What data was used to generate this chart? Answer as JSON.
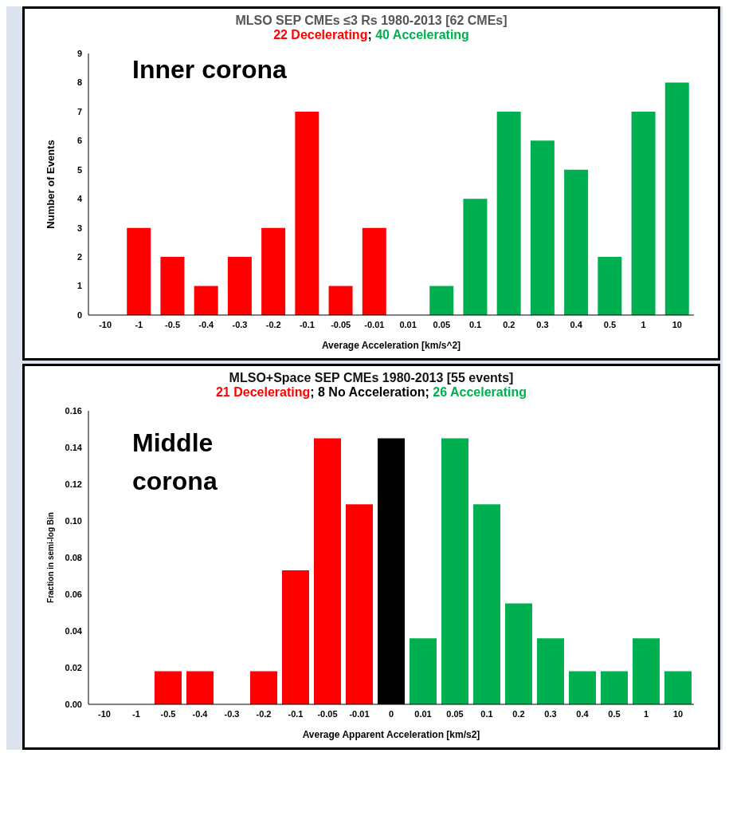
{
  "chart_data": [
    {
      "type": "bar",
      "title": "MLSO SEP CMEs ≤3 Rs 1980-2013 [62 CMEs]",
      "subtitle": "22 Decelerating; 40 Accelerating",
      "xlabel": "Average Acceleration [km/s^2]",
      "ylabel": "Number of Events",
      "annotations": [
        "Inner corona"
      ],
      "categories": [
        "-10",
        "-1",
        "-0.5",
        "-0.4",
        "-0.3",
        "-0.2",
        "-0.1",
        "-0.05",
        "-0.01",
        "0.01",
        "0.05",
        "0.1",
        "0.2",
        "0.3",
        "0.4",
        "0.5",
        "1",
        "10"
      ],
      "values": [
        0,
        3,
        2,
        1,
        2,
        3,
        7,
        1,
        3,
        0,
        1,
        4,
        7,
        6,
        5,
        2,
        7,
        8
      ],
      "colors": [
        "#ff0000",
        "#ff0000",
        "#ff0000",
        "#ff0000",
        "#ff0000",
        "#ff0000",
        "#ff0000",
        "#ff0000",
        "#ff0000",
        "#00b050",
        "#00b050",
        "#00b050",
        "#00b050",
        "#00b050",
        "#00b050",
        "#00b050",
        "#00b050",
        "#00b050"
      ],
      "ylim": [
        0,
        9
      ],
      "yticks": [
        0,
        1,
        2,
        3,
        4,
        5,
        6,
        7,
        8,
        9
      ],
      "grid": false,
      "legend": false
    },
    {
      "type": "bar",
      "title": "MLSO+Space SEP CMEs 1980-2013 [55 events]",
      "subtitle": "21 Decelerating; 8 No Acceleration; 26 Accelerating",
      "xlabel": "Average Apparent Acceleration [km/s2]",
      "ylabel": "Fraction in semi-log Bin",
      "annotations": [
        "Middle corona"
      ],
      "categories": [
        "-10",
        "-1",
        "-0.5",
        "-0.4",
        "-0.3",
        "-0.2",
        "-0.1",
        "-0.05",
        "-0.01",
        "0",
        "0.01",
        "0.05",
        "0.1",
        "0.2",
        "0.3",
        "0.4",
        "0.5",
        "1",
        "10"
      ],
      "values": [
        0,
        0,
        0.018,
        0.018,
        0,
        0.018,
        0.073,
        0.145,
        0.109,
        0.145,
        0.036,
        0.145,
        0.109,
        0.055,
        0.036,
        0.018,
        0.018,
        0.036,
        0.018
      ],
      "colors": [
        "#ff0000",
        "#ff0000",
        "#ff0000",
        "#ff0000",
        "#ff0000",
        "#ff0000",
        "#ff0000",
        "#ff0000",
        "#ff0000",
        "#000000",
        "#00b050",
        "#00b050",
        "#00b050",
        "#00b050",
        "#00b050",
        "#00b050",
        "#00b050",
        "#00b050",
        "#00b050"
      ],
      "ylim": [
        0,
        0.16
      ],
      "yticks": [
        {
          "value": 0,
          "label": "0.00"
        },
        {
          "value": 0.02,
          "label": "0.02"
        },
        {
          "value": 0.04,
          "label": "0.04"
        },
        {
          "value": 0.06,
          "label": "0.06"
        },
        {
          "value": 0.08,
          "label": "0.08"
        },
        {
          "value": 0.1,
          "label": "0.10"
        },
        {
          "value": 0.12,
          "label": "0.12"
        },
        {
          "value": 0.14,
          "label": "0.14"
        },
        {
          "value": 0.16,
          "label": "0.16"
        }
      ],
      "grid": false,
      "legend": false
    }
  ]
}
